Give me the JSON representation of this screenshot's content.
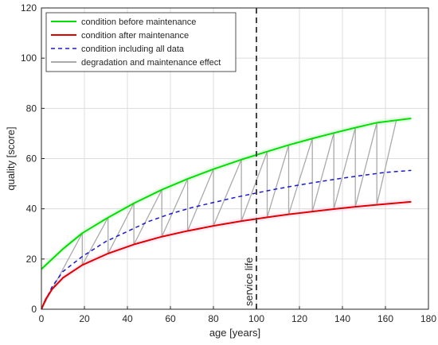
{
  "chart_data": {
    "type": "line",
    "title": "",
    "xlabel": "age [years]",
    "ylabel": "quality [score]",
    "xlim": [
      0,
      180
    ],
    "ylim": [
      0,
      120
    ],
    "xticks": [
      0,
      20,
      40,
      60,
      80,
      100,
      120,
      140,
      160,
      180
    ],
    "yticks": [
      0,
      20,
      40,
      60,
      80,
      100,
      120
    ],
    "grid": true,
    "legend_position": "top-left",
    "series": [
      {
        "name": "condition before maintenance",
        "color": "#00e000",
        "style": "solid",
        "x": [
          0,
          5,
          10,
          19,
          31,
          43,
          56,
          68,
          80,
          93,
          105,
          115,
          126,
          136,
          146,
          156,
          172
        ],
        "y": [
          16,
          20,
          24,
          30.3,
          36.5,
          42.2,
          47.6,
          51.9,
          55.8,
          59.6,
          62.8,
          65.4,
          68,
          70.2,
          72.3,
          74.3,
          76
        ]
      },
      {
        "name": "condition after maintenance",
        "color": "#e00000",
        "style": "solid",
        "x": [
          0,
          2,
          5,
          10,
          19,
          31,
          43,
          56,
          68,
          80,
          93,
          105,
          115,
          126,
          136,
          146,
          156,
          172
        ],
        "y": [
          0,
          4,
          8,
          12.5,
          17.6,
          22.2,
          25.8,
          28.9,
          31.2,
          33.2,
          35.1,
          36.6,
          37.8,
          38.9,
          39.9,
          40.8,
          41.6,
          42.8
        ]
      },
      {
        "name": "condition including all data",
        "color": "#1a1acc",
        "style": "dashed",
        "x": [
          0,
          5,
          10,
          19,
          30,
          40,
          50,
          60,
          70,
          80,
          90,
          100,
          110,
          120,
          130,
          140,
          150,
          160,
          172
        ],
        "y": [
          0,
          9,
          15,
          21,
          27,
          31,
          35,
          38,
          40.5,
          42.5,
          44.5,
          46.3,
          48,
          49.5,
          50.9,
          52.2,
          53.4,
          54.5,
          55.3
        ]
      },
      {
        "name": "degradation and maintenance effect",
        "color": "#aaaaaa",
        "style": "solid",
        "x": [
          0,
          19,
          19,
          31,
          31,
          43,
          43,
          56,
          56,
          68,
          68,
          80,
          80,
          93,
          93,
          105,
          105,
          115,
          115,
          126,
          126,
          136,
          136,
          146,
          146,
          156,
          156,
          165
        ],
        "y": [
          0,
          30.3,
          17.6,
          36.5,
          22.2,
          42.2,
          25.8,
          47.6,
          28.9,
          51.9,
          31.2,
          55.8,
          33.2,
          59.6,
          35.1,
          62.8,
          36.6,
          65.4,
          37.8,
          68,
          38.9,
          70.2,
          39.9,
          72.3,
          40.8,
          74.3,
          41.6,
          75
        ]
      }
    ],
    "annotations": [
      {
        "text": "service life",
        "x": 100,
        "style": "vertical-dashed",
        "color": "#444444"
      }
    ]
  }
}
